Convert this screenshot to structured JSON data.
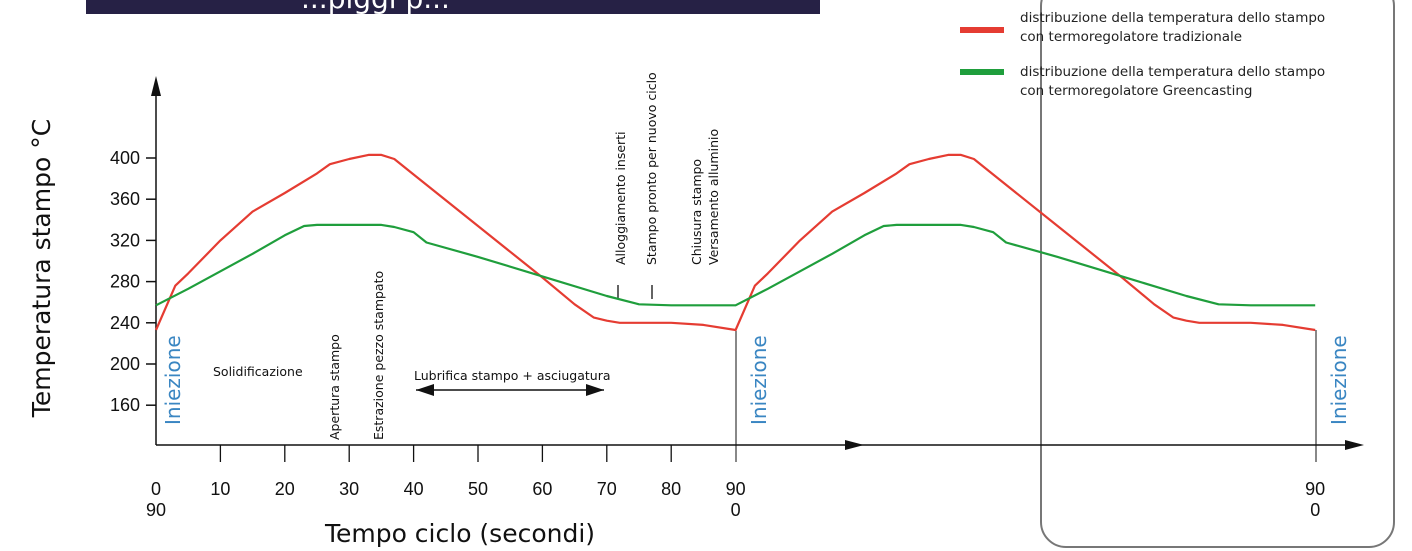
{
  "header": {
    "title": "...piggi p..."
  },
  "colors": {
    "red": "#e53c32",
    "green": "#1f9e3c",
    "injection": "#3a86c2",
    "header_bg": "#262145"
  },
  "legend": [
    {
      "color": "#e53c32",
      "line1": "distribuzione della temperatura dello stampo",
      "line2": "con termoregolatore tradizionale"
    },
    {
      "color": "#1f9e3c",
      "line1": "distribuzione della temperatura dello stampo",
      "line2": "con termoregolatore Greencasting"
    }
  ],
  "chart_data": {
    "type": "line",
    "xlabel": "Tempo ciclo (secondi)",
    "ylabel": "Temperatura stampo °C",
    "ylim": [
      130,
      470
    ],
    "xlim": [
      0,
      180
    ],
    "y_ticks": [
      160,
      200,
      240,
      280,
      320,
      360,
      400
    ],
    "x_ticks": [
      {
        "x": 0,
        "label": "0",
        "sub": "90"
      },
      {
        "x": 10,
        "label": "10"
      },
      {
        "x": 20,
        "label": "20"
      },
      {
        "x": 30,
        "label": "30"
      },
      {
        "x": 40,
        "label": "40"
      },
      {
        "x": 50,
        "label": "50"
      },
      {
        "x": 60,
        "label": "60"
      },
      {
        "x": 70,
        "label": "70"
      },
      {
        "x": 80,
        "label": "80"
      },
      {
        "x": 90,
        "label": "90",
        "sub": "0"
      },
      {
        "x": 180,
        "label": "90",
        "sub": "0"
      }
    ],
    "series": [
      {
        "name": "distribuzione della temperatura dello stampo con termoregolatore tradizionale",
        "color": "#e53c32",
        "x": [
          0,
          3,
          5,
          10,
          15,
          20,
          25,
          27,
          30,
          33,
          35,
          37,
          40,
          50,
          60,
          65,
          68,
          70,
          72,
          80,
          85,
          90,
          93,
          95,
          100,
          105,
          110,
          115,
          117,
          120,
          123,
          125,
          127,
          130,
          140,
          150,
          155,
          158,
          160,
          162,
          170,
          175,
          180
        ],
        "y": [
          233,
          276,
          288,
          320,
          348,
          366,
          385,
          394,
          399,
          403,
          403,
          399,
          384,
          334,
          284,
          258,
          245,
          242,
          240,
          240,
          238,
          233,
          276,
          288,
          320,
          348,
          366,
          385,
          394,
          399,
          403,
          403,
          399,
          384,
          334,
          284,
          258,
          245,
          242,
          240,
          240,
          238,
          233
        ]
      },
      {
        "name": "distribuzione della temperatura dello stampo con termoregolatore Greencasting",
        "color": "#1f9e3c",
        "x": [
          0,
          5,
          10,
          15,
          20,
          23,
          25,
          35,
          37,
          40,
          42,
          50,
          60,
          70,
          75,
          80,
          90,
          95,
          100,
          105,
          110,
          113,
          115,
          125,
          127,
          130,
          132,
          140,
          150,
          160,
          165,
          170,
          180
        ],
        "y": [
          257,
          273,
          290,
          307,
          325,
          334,
          335,
          335,
          333,
          328,
          318,
          304,
          285,
          266,
          258,
          257,
          257,
          273,
          290,
          307,
          325,
          334,
          335,
          335,
          333,
          328,
          318,
          304,
          285,
          266,
          258,
          257,
          257
        ]
      }
    ]
  },
  "labels": {
    "injection": "Iniezione",
    "solidification": "Solidificazione",
    "mold_opening": "Apertura stampo",
    "part_extraction": "Estrazione pezzo stampato",
    "lubrication": "Lubrifica stampo + asciugatura",
    "insert_housing": "Alloggiamento inserti",
    "mold_ready": "Stampo pronto per nuovo ciclo",
    "mold_closing": "Chiusura stampo",
    "aluminium_pouring": "Versamento alluminio"
  }
}
